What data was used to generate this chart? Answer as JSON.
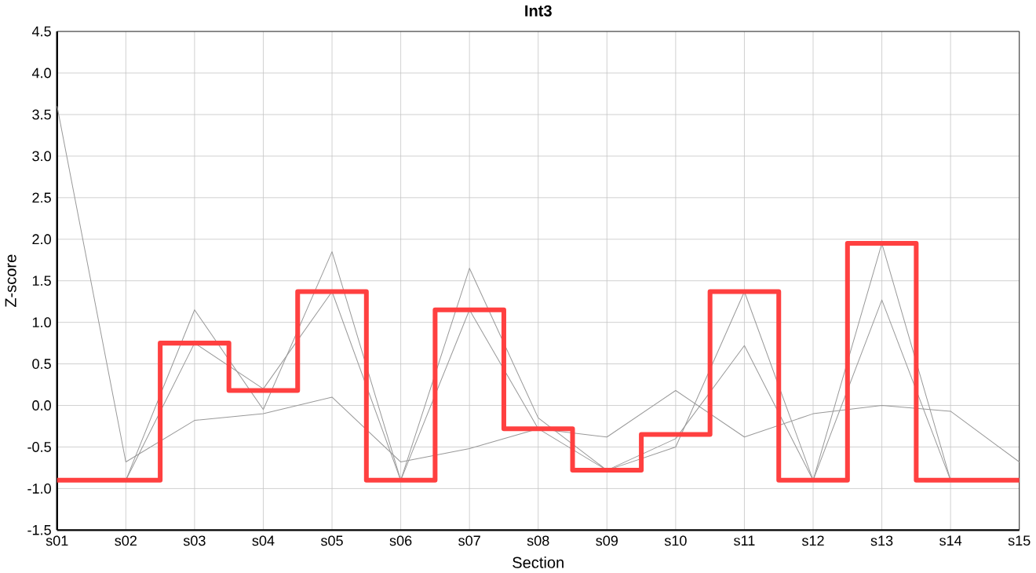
{
  "chart_data": {
    "type": "line",
    "title": "Int3",
    "xlabel": "Section",
    "ylabel": "Z-score",
    "categories": [
      "s01",
      "s02",
      "s03",
      "s04",
      "s05",
      "s06",
      "s07",
      "s08",
      "s09",
      "s10",
      "s11",
      "s12",
      "s13",
      "s14",
      "s15"
    ],
    "ylim": [
      -1.5,
      4.5
    ],
    "yticks": [
      {
        "value": -1.5,
        "label": "-1.5"
      },
      {
        "value": -1.0,
        "label": "-1.0"
      },
      {
        "value": -0.5,
        "label": "-0.5"
      },
      {
        "value": 0,
        "label": "0.0"
      },
      {
        "value": 0.5,
        "label": "0.5"
      },
      {
        "value": 1.0,
        "label": "1.0"
      },
      {
        "value": 1.5,
        "label": "1.5"
      },
      {
        "value": 2.0,
        "label": "2.0"
      },
      {
        "value": 2.5,
        "label": "2.5"
      },
      {
        "value": 3.0,
        "label": "3.0"
      },
      {
        "value": 3.5,
        "label": "3.5"
      },
      {
        "value": 4.0,
        "label": "4.0"
      },
      {
        "value": 4.5,
        "label": "4.5"
      }
    ],
    "grid": true,
    "marker": "none",
    "series": [
      {
        "color": "#999999",
        "values": [
          3.6,
          -0.68,
          -0.18,
          -0.1,
          0.1,
          -0.68,
          -0.52,
          -0.28,
          -0.38,
          0.18,
          -0.38,
          -0.1,
          0.0,
          -0.07,
          -0.68
        ]
      },
      {
        "color": "#999999",
        "values": [
          null,
          -0.9,
          1.15,
          -0.05,
          1.85,
          -0.9,
          1.65,
          -0.15,
          -0.78,
          -0.5,
          1.37,
          -0.9,
          1.95,
          -0.9,
          null
        ]
      },
      {
        "color": "#999999",
        "values": [
          null,
          -0.9,
          0.75,
          0.2,
          1.37,
          -0.9,
          1.15,
          -0.28,
          -0.78,
          -0.4,
          0.72,
          -0.9,
          1.27,
          -0.9,
          null
        ]
      },
      {
        "type": "step",
        "color": "#ff4040",
        "values": [
          -0.9,
          -0.9,
          0.75,
          0.18,
          1.37,
          -0.9,
          1.15,
          -0.28,
          -0.78,
          -0.35,
          1.37,
          -0.9,
          1.95,
          -0.9,
          -0.9
        ]
      }
    ]
  }
}
